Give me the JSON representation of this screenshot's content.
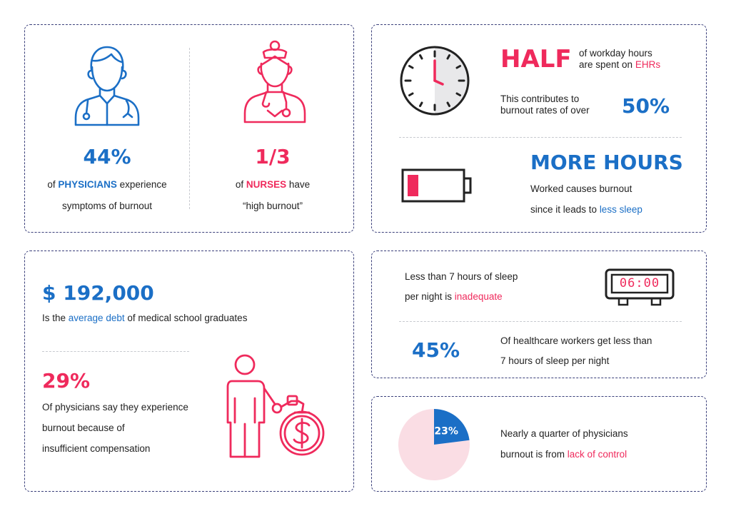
{
  "colors": {
    "blue": "#1b6fc6",
    "pink": "#ef2a5c",
    "light_pink": "#fadde4",
    "dark": "#222222"
  },
  "card1": {
    "physicians_stat": "44%",
    "physicians_pre": "of ",
    "physicians_emph": "PHYSICIANS",
    "physicians_post": " experience",
    "physicians_line2": "symptoms of burnout",
    "nurses_stat": "1/3",
    "nurses_pre": "of ",
    "nurses_emph": "NURSES",
    "nurses_post": " have",
    "nurses_line2": "“high burnout”",
    "icons": [
      "doctor-icon",
      "nurse-icon"
    ]
  },
  "card2": {
    "half_title": "HALF",
    "half_line1": "of workday hours",
    "half_line2_pre": "are spent on ",
    "half_line2_emph": "EHRs",
    "contrib_line1": "This contributes to",
    "contrib_line2": "burnout rates of over",
    "contrib_stat": "50%",
    "more_title": "MORE HOURS",
    "more_line1": "Worked causes burnout",
    "more_line2_pre": "since it leads to ",
    "more_line2_emph": "less sleep",
    "icons": [
      "clock-icon",
      "battery-low-icon"
    ]
  },
  "card3": {
    "debt_stat": "$ 192,000",
    "debt_pre": "Is the ",
    "debt_emph": "average debt",
    "debt_post": " of medical school graduates",
    "pct_stat": "29%",
    "pct_line1": "Of physicians say they experience",
    "pct_line2": "burnout because of",
    "pct_line3": "insufficient compensation",
    "icons": [
      "person-with-money-bag-icon"
    ]
  },
  "card4": {
    "sleep_line1": "Less than 7 hours of sleep",
    "sleep_line2_pre": "per night is ",
    "sleep_line2_emph": "inadequate",
    "clock_display": "06:00",
    "workers_stat": "45%",
    "workers_line1": "Of healthcare workers get less than",
    "workers_line2": "7 hours of sleep per night",
    "icons": [
      "alarm-clock-icon"
    ]
  },
  "card5": {
    "pie_label": "23%",
    "line1": "Nearly a quarter of physicians",
    "line2_pre": "burnout is from ",
    "line2_emph": "lack of control"
  },
  "chart_data": {
    "type": "pie",
    "values": [
      23,
      77
    ],
    "data_labels": [
      "23%",
      ""
    ],
    "colors": [
      "#1b6fc6",
      "#fadde4"
    ]
  }
}
